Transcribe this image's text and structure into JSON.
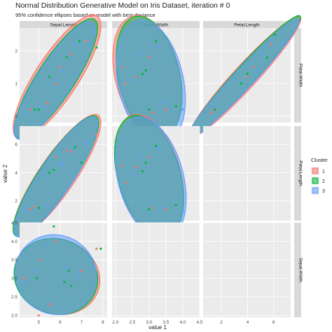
{
  "title": "Normal Distribution Generative Model on Iris Dataset, iteration # 0",
  "subtitle": "95% confidence ellipses based on model with best deviance",
  "xlabel": "value 1",
  "ylabel": "value 2",
  "legend": {
    "title": "Cluster",
    "items": [
      {
        "label": "1",
        "color": "#F8766D"
      },
      {
        "label": "2",
        "color": "#00BA38"
      },
      {
        "label": "3",
        "color": "#619CFF"
      }
    ]
  },
  "colors": {
    "panel_bg": "#EBEBEB",
    "strip_bg": "#D9D9D9",
    "grid_major": "#FFFFFF"
  },
  "chart_data": {
    "type": "scatter",
    "columns": [
      {
        "name": "Sepal.Length",
        "range": [
          4.1,
          8.2
        ],
        "ticks": [
          5,
          6,
          7,
          8
        ]
      },
      {
        "name": "Sepal.Width",
        "range": [
          1.9,
          4.5
        ],
        "ticks": [
          "2.0",
          "2.5",
          "3.0",
          "3.5",
          "4.0",
          "4.5"
        ]
      },
      {
        "name": "Petal.Length",
        "range": [
          0.6,
          7.3
        ],
        "ticks": [
          2,
          4,
          6
        ]
      }
    ],
    "rows": [
      {
        "name": "Petal.Width",
        "range": [
          -0.2,
          2.7
        ],
        "ticks": [
          0,
          1,
          2
        ]
      },
      {
        "name": "Petal.Length",
        "range": [
          0.6,
          7.3
        ],
        "ticks": [
          2,
          4,
          6
        ]
      },
      {
        "name": "Sepal.Width",
        "range": [
          1.95,
          4.5
        ],
        "ticks": [
          "2.0",
          "2.5",
          "3.0",
          "3.5",
          "4.0",
          "4.5"
        ]
      }
    ],
    "panels": [
      {
        "row": 0,
        "col": 0,
        "x": "Sepal.Length",
        "y": "Petal.Width",
        "points": [
          [
            4.6,
            0.2
          ],
          [
            4.8,
            0.2
          ],
          [
            5.1,
            0.3
          ],
          [
            5.4,
            0.4
          ],
          [
            5.0,
            0.2
          ],
          [
            5.7,
            1.1
          ],
          [
            6.0,
            1.5
          ],
          [
            6.3,
            1.8
          ],
          [
            6.7,
            2.2
          ],
          [
            7.2,
            2.3
          ],
          [
            5.5,
            1.2
          ],
          [
            6.1,
            1.4
          ],
          [
            6.5,
            1.9
          ],
          [
            7.7,
            2.1
          ],
          [
            4.4,
            0.1
          ],
          [
            5.8,
            1.0
          ],
          [
            6.9,
            2.3
          ]
        ],
        "ellipses": [
          {
            "cx": 5.85,
            "cy": 1.2,
            "sx": 0.84,
            "sy": 0.78,
            "rho": 0.82
          },
          {
            "cx": 5.8,
            "cy": 1.15,
            "sx": 0.8,
            "sy": 0.75,
            "rho": 0.85
          },
          {
            "cx": 5.75,
            "cy": 1.1,
            "sx": 0.78,
            "sy": 0.74,
            "rho": 0.86
          }
        ]
      },
      {
        "row": 0,
        "col": 1,
        "x": "Sepal.Width",
        "y": "Petal.Width",
        "points": [
          [
            3.5,
            0.2
          ],
          [
            3.0,
            0.2
          ],
          [
            3.4,
            0.4
          ],
          [
            3.1,
            0.1
          ],
          [
            2.8,
            1.3
          ],
          [
            2.5,
            1.1
          ],
          [
            3.0,
            1.8
          ],
          [
            3.2,
            2.3
          ],
          [
            2.7,
            1.9
          ],
          [
            2.3,
            1.0
          ],
          [
            3.8,
            0.3
          ],
          [
            4.0,
            0.2
          ],
          [
            2.2,
            1.5
          ],
          [
            2.9,
            1.4
          ],
          [
            3.3,
            2.1
          ],
          [
            2.6,
            1.2
          ]
        ],
        "ellipses": [
          {
            "cx": 2.95,
            "cy": 1.25,
            "sx": 0.42,
            "sy": 0.75,
            "rho": -0.3
          },
          {
            "cx": 3.0,
            "cy": 1.2,
            "sx": 0.4,
            "sy": 0.76,
            "rho": -0.32
          },
          {
            "cx": 3.05,
            "cy": 1.05,
            "sx": 0.42,
            "sy": 0.78,
            "rho": -0.28
          }
        ]
      },
      {
        "row": 0,
        "col": 2,
        "x": "Petal.Length",
        "y": "Petal.Width",
        "points": [
          [
            1.4,
            0.2
          ],
          [
            1.5,
            0.2
          ],
          [
            1.3,
            0.3
          ],
          [
            4.5,
            1.5
          ],
          [
            4.0,
            1.3
          ],
          [
            5.1,
            1.9
          ],
          [
            5.8,
            2.2
          ],
          [
            6.1,
            2.5
          ],
          [
            4.7,
            1.4
          ],
          [
            3.9,
            1.2
          ],
          [
            5.5,
            1.8
          ],
          [
            6.7,
            2.2
          ],
          [
            1.2,
            0.1
          ],
          [
            3.5,
            1.0
          ]
        ],
        "ellipses": [
          {
            "cx": 3.8,
            "cy": 1.2,
            "sx": 1.75,
            "sy": 0.76,
            "rho": 0.96
          },
          {
            "cx": 3.75,
            "cy": 1.2,
            "sx": 1.76,
            "sy": 0.77,
            "rho": 0.97
          },
          {
            "cx": 3.7,
            "cy": 1.15,
            "sx": 1.74,
            "sy": 0.75,
            "rho": 0.97
          }
        ]
      },
      {
        "row": 1,
        "col": 0,
        "x": "Sepal.Length",
        "y": "Petal.Length",
        "points": [
          [
            4.6,
            1.4
          ],
          [
            5.0,
            1.5
          ],
          [
            5.4,
            1.7
          ],
          [
            4.8,
            1.6
          ],
          [
            5.7,
            4.2
          ],
          [
            6.0,
            4.5
          ],
          [
            6.3,
            5.6
          ],
          [
            6.7,
            5.8
          ],
          [
            7.2,
            6.1
          ],
          [
            7.7,
            6.7
          ],
          [
            5.5,
            4.0
          ],
          [
            6.1,
            4.7
          ],
          [
            6.5,
            5.5
          ],
          [
            7.0,
            4.7
          ],
          [
            4.4,
            1.3
          ],
          [
            5.8,
            5.1
          ]
        ],
        "ellipses": [
          {
            "cx": 5.85,
            "cy": 3.8,
            "sx": 0.84,
            "sy": 1.77,
            "rho": 0.87
          },
          {
            "cx": 5.8,
            "cy": 3.75,
            "sx": 0.82,
            "sy": 1.75,
            "rho": 0.88
          },
          {
            "cx": 5.8,
            "cy": 3.7,
            "sx": 0.8,
            "sy": 1.74,
            "rho": 0.88
          }
        ]
      },
      {
        "row": 1,
        "col": 1,
        "x": "Sepal.Width",
        "y": "Petal.Length",
        "points": [
          [
            3.5,
            1.4
          ],
          [
            3.0,
            1.4
          ],
          [
            3.4,
            1.5
          ],
          [
            3.1,
            1.5
          ],
          [
            2.8,
            4.1
          ],
          [
            2.5,
            3.9
          ],
          [
            3.0,
            5.1
          ],
          [
            3.2,
            5.9
          ],
          [
            2.7,
            5.1
          ],
          [
            2.3,
            3.3
          ],
          [
            3.8,
            1.7
          ],
          [
            4.0,
            1.2
          ],
          [
            2.2,
            4.5
          ],
          [
            2.9,
            4.7
          ],
          [
            3.3,
            5.7
          ],
          [
            2.6,
            4.4
          ]
        ],
        "ellipses": [
          {
            "cx": 3.0,
            "cy": 3.8,
            "sx": 0.42,
            "sy": 1.77,
            "rho": -0.35
          },
          {
            "cx": 3.0,
            "cy": 3.75,
            "sx": 0.42,
            "sy": 1.76,
            "rho": -0.38
          },
          {
            "cx": 3.05,
            "cy": 3.6,
            "sx": 0.43,
            "sy": 1.78,
            "rho": -0.33
          }
        ]
      },
      {
        "row": 2,
        "col": 0,
        "x": "Sepal.Length",
        "y": "Sepal.Width",
        "points": [
          [
            5.1,
            3.5
          ],
          [
            4.9,
            3.0
          ],
          [
            4.7,
            3.2
          ],
          [
            5.8,
            4.0
          ],
          [
            5.7,
            4.4
          ],
          [
            5.4,
            3.9
          ],
          [
            7.0,
            3.2
          ],
          [
            6.4,
            3.2
          ],
          [
            6.9,
            3.1
          ],
          [
            5.5,
            2.3
          ],
          [
            6.5,
            2.8
          ],
          [
            6.3,
            3.3
          ],
          [
            7.7,
            3.8
          ],
          [
            7.9,
            3.8
          ],
          [
            6.0,
            2.2
          ],
          [
            5.0,
            2.0
          ],
          [
            6.2,
            2.9
          ],
          [
            4.4,
            2.9
          ],
          [
            4.3,
            3.0
          ]
        ],
        "ellipses": [
          {
            "cx": 5.85,
            "cy": 3.05,
            "sx": 0.82,
            "sy": 0.42,
            "rho": -0.1
          },
          {
            "cx": 5.8,
            "cy": 3.05,
            "sx": 0.8,
            "sy": 0.42,
            "rho": -0.08
          },
          {
            "cx": 5.8,
            "cy": 3.1,
            "sx": 0.78,
            "sy": 0.44,
            "rho": -0.05
          }
        ]
      }
    ]
  }
}
